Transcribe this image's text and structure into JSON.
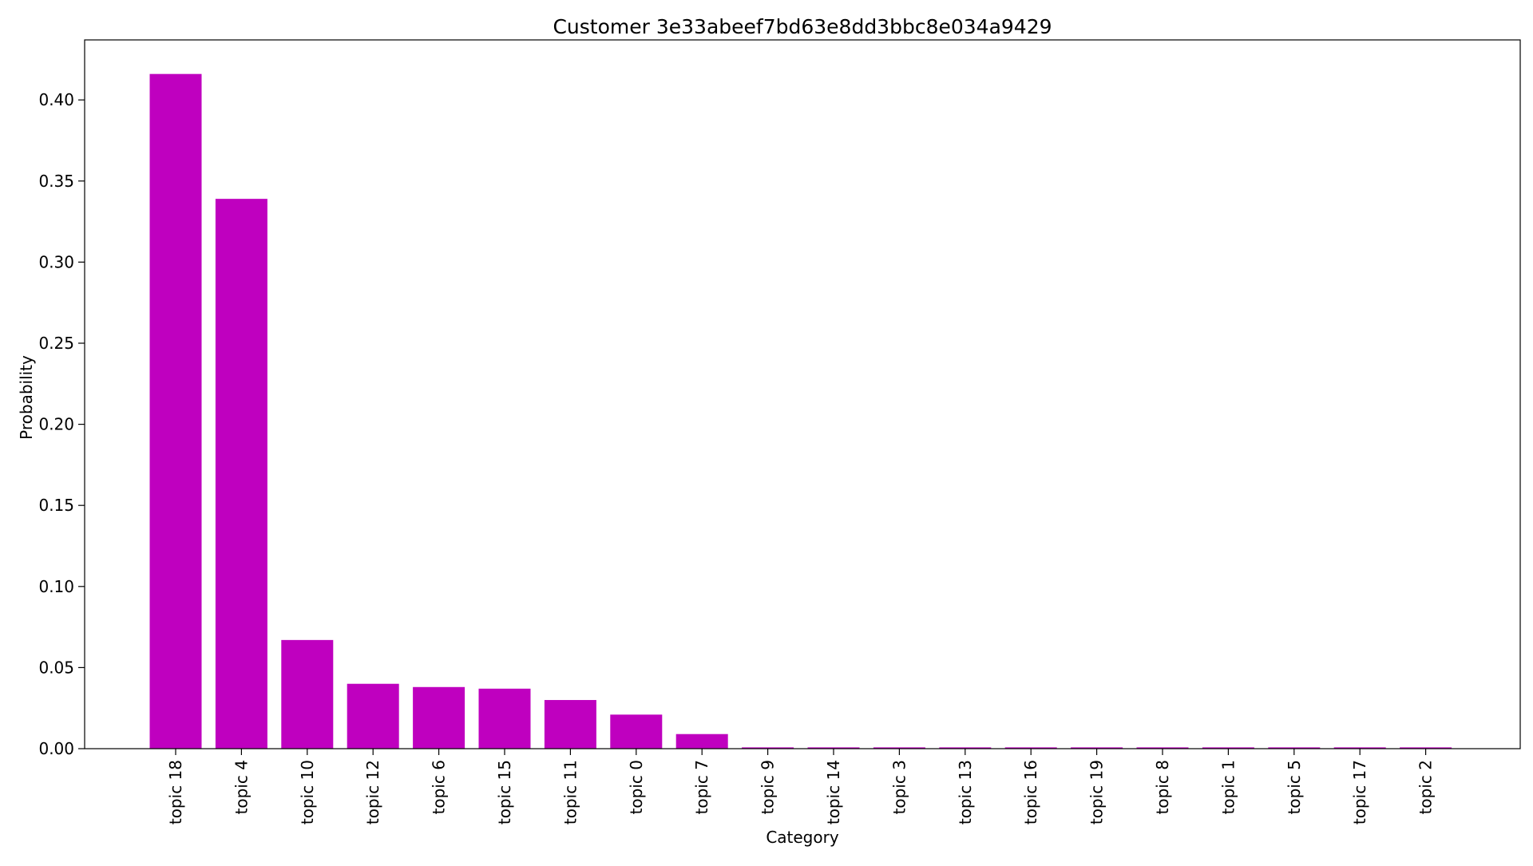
{
  "chart_data": {
    "type": "bar",
    "title": "Customer 3e33abeef7bd63e8dd3bbc8e034a9429",
    "xlabel": "Category",
    "ylabel": "Probability",
    "categories": [
      "topic 18",
      "topic 4",
      "topic 10",
      "topic 12",
      "topic 6",
      "topic 15",
      "topic 11",
      "topic 0",
      "topic 7",
      "topic 9",
      "topic 14",
      "topic 3",
      "topic 13",
      "topic 16",
      "topic 19",
      "topic 8",
      "topic 1",
      "topic 5",
      "topic 17",
      "topic 2"
    ],
    "values": [
      0.416,
      0.339,
      0.067,
      0.04,
      0.038,
      0.037,
      0.03,
      0.021,
      0.009,
      0.0008,
      0.0008,
      0.0008,
      0.0008,
      0.0008,
      0.0008,
      0.0008,
      0.0008,
      0.0008,
      0.0008,
      0.0008
    ],
    "yticks": [
      0.0,
      0.05,
      0.1,
      0.15,
      0.2,
      0.25,
      0.3,
      0.35,
      0.4
    ],
    "ytick_labels": [
      "0.00",
      "0.05",
      "0.10",
      "0.15",
      "0.20",
      "0.25",
      "0.30",
      "0.35",
      "0.40"
    ],
    "ylim": [
      0,
      0.437
    ],
    "bar_color": "#bf00bf",
    "grid": false,
    "legend": "none"
  }
}
